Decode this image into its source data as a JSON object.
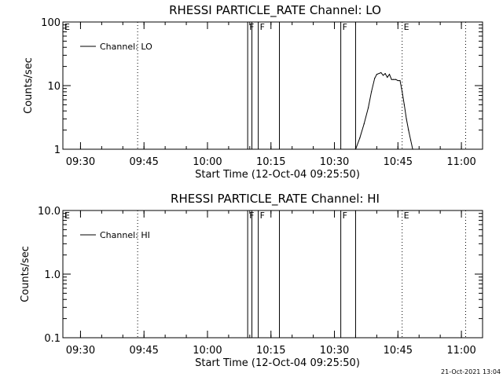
{
  "chart_data": [
    {
      "type": "line",
      "title": "RHESSI PARTICLE_RATE Channel: LO",
      "xlabel": "Start Time (12-Oct-04 09:25:50)",
      "ylabel": "Counts/sec",
      "y_scale": "log",
      "ylim": [
        1,
        100
      ],
      "xlim": [
        "09:25:50",
        "11:05:00"
      ],
      "x_ticks": [
        "09:30",
        "09:45",
        "10:00",
        "10:15",
        "10:30",
        "10:45",
        "11:00"
      ],
      "y_ticks": [
        "1",
        "10",
        "100"
      ],
      "legend": "top-left",
      "series": [
        {
          "name": "Channel: LO",
          "color": "#000000",
          "x": [
            "10:35:00",
            "10:36:00",
            "10:37:00",
            "10:38:00",
            "10:38:45",
            "10:39:30",
            "10:40:00",
            "10:41:00",
            "10:41:30",
            "10:42:00",
            "10:42:30",
            "10:43:00",
            "10:43:30",
            "10:44:00",
            "10:44:30",
            "10:45:00",
            "10:45:30",
            "10:46:00",
            "10:46:30",
            "10:47:00",
            "10:47:30",
            "10:48:00",
            "10:48:30"
          ],
          "values": [
            1,
            1.5,
            2.5,
            4.5,
            8,
            13,
            15,
            16,
            14.5,
            15.5,
            13.5,
            15,
            12.5,
            12.5,
            12.5,
            12,
            12,
            8,
            5,
            3,
            2,
            1.4,
            1
          ]
        }
      ],
      "markers": [
        {
          "type": "dotted",
          "time": "09:43:30",
          "label": ""
        },
        {
          "type": "solid",
          "time": "10:09:30",
          "label": "F"
        },
        {
          "type": "solid",
          "time": "10:10:30",
          "label": ""
        },
        {
          "type": "solid",
          "time": "10:12:00",
          "label": "F"
        },
        {
          "type": "solid",
          "time": "10:17:00",
          "label": ""
        },
        {
          "type": "solid",
          "time": "10:31:30",
          "label": "F"
        },
        {
          "type": "solid",
          "time": "10:35:00",
          "label": ""
        },
        {
          "type": "dotted",
          "time": "10:46:00",
          "label": "E"
        },
        {
          "type": "dotted",
          "time": "11:01:00",
          "label": ""
        }
      ],
      "corner_label": "E"
    },
    {
      "type": "line",
      "title": "RHESSI PARTICLE_RATE Channel: HI",
      "xlabel": "Start Time (12-Oct-04 09:25:50)",
      "ylabel": "Counts/sec",
      "y_scale": "log",
      "ylim": [
        0.1,
        10
      ],
      "xlim": [
        "09:25:50",
        "11:05:00"
      ],
      "x_ticks": [
        "09:30",
        "09:45",
        "10:00",
        "10:15",
        "10:30",
        "10:45",
        "11:00"
      ],
      "y_ticks": [
        "0.1",
        "1.0",
        "10.0"
      ],
      "legend": "top-left",
      "series": [
        {
          "name": "Channel: HI",
          "color": "#000000",
          "x": [],
          "values": []
        }
      ],
      "markers": [
        {
          "type": "dotted",
          "time": "09:43:30",
          "label": ""
        },
        {
          "type": "solid",
          "time": "10:09:30",
          "label": "F"
        },
        {
          "type": "solid",
          "time": "10:10:30",
          "label": ""
        },
        {
          "type": "solid",
          "time": "10:12:00",
          "label": "F"
        },
        {
          "type": "solid",
          "time": "10:17:00",
          "label": ""
        },
        {
          "type": "solid",
          "time": "10:31:30",
          "label": "F"
        },
        {
          "type": "solid",
          "time": "10:35:00",
          "label": ""
        },
        {
          "type": "dotted",
          "time": "10:46:00",
          "label": "E"
        },
        {
          "type": "dotted",
          "time": "11:01:00",
          "label": ""
        }
      ],
      "corner_label": "E"
    }
  ],
  "footer": {
    "timestamp": "21-Oct-2021 13:04"
  }
}
